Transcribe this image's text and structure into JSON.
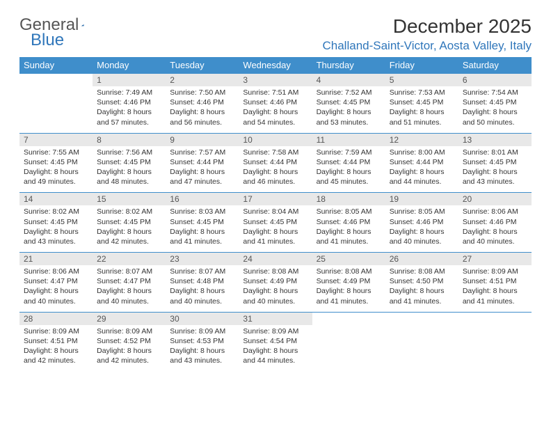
{
  "logo": {
    "text1": "General",
    "text2": "Blue"
  },
  "title": "December 2025",
  "location": "Challand-Saint-Victor, Aosta Valley, Italy",
  "colors": {
    "header_bg": "#3f8ecb",
    "header_text": "#ffffff",
    "daynum_bg": "#e8e8e8",
    "border": "#3f8ecb",
    "logo_gray": "#555555",
    "logo_blue": "#2f76ba",
    "body_text": "#333333"
  },
  "days_of_week": [
    "Sunday",
    "Monday",
    "Tuesday",
    "Wednesday",
    "Thursday",
    "Friday",
    "Saturday"
  ],
  "weeks": [
    [
      {
        "empty": true
      },
      {
        "n": "1",
        "sr": "7:49 AM",
        "ss": "4:46 PM",
        "dl": "8 hours and 57 minutes."
      },
      {
        "n": "2",
        "sr": "7:50 AM",
        "ss": "4:46 PM",
        "dl": "8 hours and 56 minutes."
      },
      {
        "n": "3",
        "sr": "7:51 AM",
        "ss": "4:46 PM",
        "dl": "8 hours and 54 minutes."
      },
      {
        "n": "4",
        "sr": "7:52 AM",
        "ss": "4:45 PM",
        "dl": "8 hours and 53 minutes."
      },
      {
        "n": "5",
        "sr": "7:53 AM",
        "ss": "4:45 PM",
        "dl": "8 hours and 51 minutes."
      },
      {
        "n": "6",
        "sr": "7:54 AM",
        "ss": "4:45 PM",
        "dl": "8 hours and 50 minutes."
      }
    ],
    [
      {
        "n": "7",
        "sr": "7:55 AM",
        "ss": "4:45 PM",
        "dl": "8 hours and 49 minutes."
      },
      {
        "n": "8",
        "sr": "7:56 AM",
        "ss": "4:45 PM",
        "dl": "8 hours and 48 minutes."
      },
      {
        "n": "9",
        "sr": "7:57 AM",
        "ss": "4:44 PM",
        "dl": "8 hours and 47 minutes."
      },
      {
        "n": "10",
        "sr": "7:58 AM",
        "ss": "4:44 PM",
        "dl": "8 hours and 46 minutes."
      },
      {
        "n": "11",
        "sr": "7:59 AM",
        "ss": "4:44 PM",
        "dl": "8 hours and 45 minutes."
      },
      {
        "n": "12",
        "sr": "8:00 AM",
        "ss": "4:44 PM",
        "dl": "8 hours and 44 minutes."
      },
      {
        "n": "13",
        "sr": "8:01 AM",
        "ss": "4:45 PM",
        "dl": "8 hours and 43 minutes."
      }
    ],
    [
      {
        "n": "14",
        "sr": "8:02 AM",
        "ss": "4:45 PM",
        "dl": "8 hours and 43 minutes."
      },
      {
        "n": "15",
        "sr": "8:02 AM",
        "ss": "4:45 PM",
        "dl": "8 hours and 42 minutes."
      },
      {
        "n": "16",
        "sr": "8:03 AM",
        "ss": "4:45 PM",
        "dl": "8 hours and 41 minutes."
      },
      {
        "n": "17",
        "sr": "8:04 AM",
        "ss": "4:45 PM",
        "dl": "8 hours and 41 minutes."
      },
      {
        "n": "18",
        "sr": "8:05 AM",
        "ss": "4:46 PM",
        "dl": "8 hours and 41 minutes."
      },
      {
        "n": "19",
        "sr": "8:05 AM",
        "ss": "4:46 PM",
        "dl": "8 hours and 40 minutes."
      },
      {
        "n": "20",
        "sr": "8:06 AM",
        "ss": "4:46 PM",
        "dl": "8 hours and 40 minutes."
      }
    ],
    [
      {
        "n": "21",
        "sr": "8:06 AM",
        "ss": "4:47 PM",
        "dl": "8 hours and 40 minutes."
      },
      {
        "n": "22",
        "sr": "8:07 AM",
        "ss": "4:47 PM",
        "dl": "8 hours and 40 minutes."
      },
      {
        "n": "23",
        "sr": "8:07 AM",
        "ss": "4:48 PM",
        "dl": "8 hours and 40 minutes."
      },
      {
        "n": "24",
        "sr": "8:08 AM",
        "ss": "4:49 PM",
        "dl": "8 hours and 40 minutes."
      },
      {
        "n": "25",
        "sr": "8:08 AM",
        "ss": "4:49 PM",
        "dl": "8 hours and 41 minutes."
      },
      {
        "n": "26",
        "sr": "8:08 AM",
        "ss": "4:50 PM",
        "dl": "8 hours and 41 minutes."
      },
      {
        "n": "27",
        "sr": "8:09 AM",
        "ss": "4:51 PM",
        "dl": "8 hours and 41 minutes."
      }
    ],
    [
      {
        "n": "28",
        "sr": "8:09 AM",
        "ss": "4:51 PM",
        "dl": "8 hours and 42 minutes."
      },
      {
        "n": "29",
        "sr": "8:09 AM",
        "ss": "4:52 PM",
        "dl": "8 hours and 42 minutes."
      },
      {
        "n": "30",
        "sr": "8:09 AM",
        "ss": "4:53 PM",
        "dl": "8 hours and 43 minutes."
      },
      {
        "n": "31",
        "sr": "8:09 AM",
        "ss": "4:54 PM",
        "dl": "8 hours and 44 minutes."
      },
      {
        "empty": true
      },
      {
        "empty": true
      },
      {
        "empty": true
      }
    ]
  ],
  "labels": {
    "sunrise": "Sunrise:",
    "sunset": "Sunset:",
    "daylight": "Daylight:"
  }
}
